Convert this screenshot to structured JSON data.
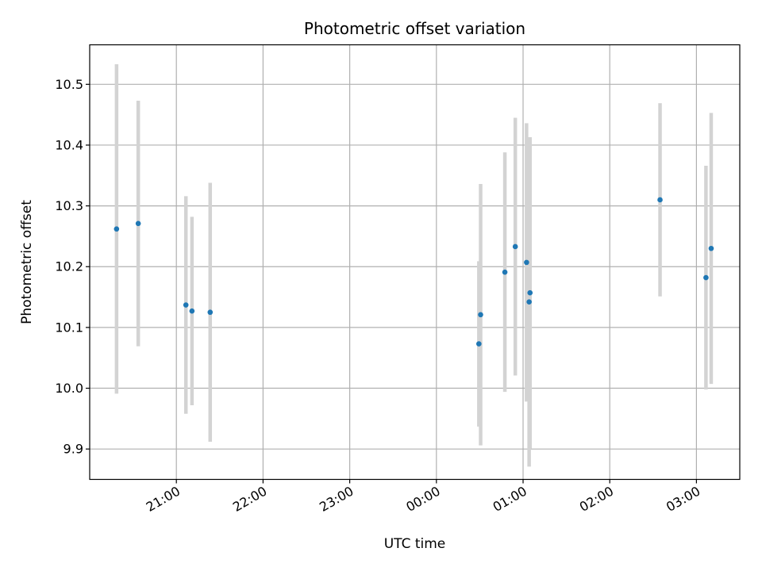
{
  "chart_data": {
    "type": "scatter",
    "title": "Photometric offset variation",
    "xlabel": "UTC time",
    "ylabel": "Photometric offset",
    "x_unit": "UTC time of night, hours (20.0 = 20:00, 27.0 = 03:00 next day)",
    "xlim": [
      20.0,
      27.5
    ],
    "ylim": [
      9.85,
      10.565
    ],
    "grid": true,
    "x_ticks": [
      {
        "value": 21,
        "label": "21:00"
      },
      {
        "value": 22,
        "label": "22:00"
      },
      {
        "value": 23,
        "label": "23:00"
      },
      {
        "value": 24,
        "label": "00:00"
      },
      {
        "value": 25,
        "label": "01:00"
      },
      {
        "value": 26,
        "label": "02:00"
      },
      {
        "value": 27,
        "label": "03:00"
      }
    ],
    "y_ticks": [
      {
        "value": 9.9,
        "label": "9.9"
      },
      {
        "value": 10.0,
        "label": "10.0"
      },
      {
        "value": 10.1,
        "label": "10.1"
      },
      {
        "value": 10.2,
        "label": "10.2"
      },
      {
        "value": 10.3,
        "label": "10.3"
      },
      {
        "value": 10.4,
        "label": "10.4"
      },
      {
        "value": 10.5,
        "label": "10.5"
      }
    ],
    "colors": {
      "points": "#1f77b4",
      "errorbars": "#d3d3d3",
      "grid": "#b0b0b0"
    },
    "series": [
      {
        "points": [
          {
            "x": 20.31,
            "y": 10.262,
            "err": 0.271
          },
          {
            "x": 20.56,
            "y": 10.271,
            "err": 0.202
          },
          {
            "x": 21.11,
            "y": 10.137,
            "err": 0.179
          },
          {
            "x": 21.18,
            "y": 10.127,
            "err": 0.155
          },
          {
            "x": 21.39,
            "y": 10.125,
            "err": 0.213
          },
          {
            "x": 24.49,
            "y": 10.073,
            "err": 0.136
          },
          {
            "x": 24.51,
            "y": 10.121,
            "err": 0.215
          },
          {
            "x": 24.79,
            "y": 10.191,
            "err": 0.197
          },
          {
            "x": 24.91,
            "y": 10.233,
            "err": 0.212
          },
          {
            "x": 25.04,
            "y": 10.207,
            "err": 0.229
          },
          {
            "x": 25.07,
            "y": 10.142,
            "err": 0.271
          },
          {
            "x": 25.08,
            "y": 10.157,
            "err": 0.256
          },
          {
            "x": 26.58,
            "y": 10.31,
            "err": 0.159
          },
          {
            "x": 27.11,
            "y": 10.182,
            "err": 0.184
          },
          {
            "x": 27.17,
            "y": 10.23,
            "err": 0.223
          }
        ]
      }
    ]
  }
}
